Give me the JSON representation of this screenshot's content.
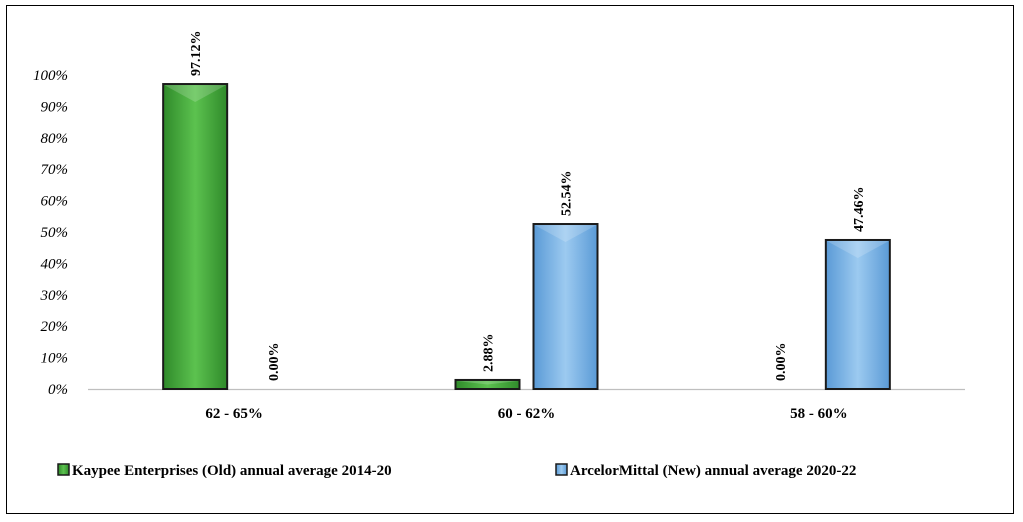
{
  "chart_data": {
    "type": "bar",
    "categories": [
      "62 - 65%",
      "60 - 62%",
      "58 - 60%"
    ],
    "series": [
      {
        "name": "Kaypee Enterprises (Old) annual average 2014-20",
        "values": [
          97.12,
          2.88,
          0.0
        ],
        "labels": [
          "97.12%",
          "2.88%",
          "0.00%"
        ],
        "color": "#4aa83f"
      },
      {
        "name": "ArcelorMittal (New) annual average 2020-22",
        "values": [
          0.0,
          52.54,
          47.46
        ],
        "labels": [
          "0.00%",
          "52.54%",
          "47.46%"
        ],
        "color": "#7fb6e6"
      }
    ],
    "ytick_labels": [
      "0%",
      "10%",
      "20%",
      "30%",
      "40%",
      "50%",
      "60%",
      "70%",
      "80%",
      "90%",
      "100%"
    ],
    "ylim": [
      0,
      100
    ],
    "grid": false,
    "legend_position": "bottom"
  }
}
